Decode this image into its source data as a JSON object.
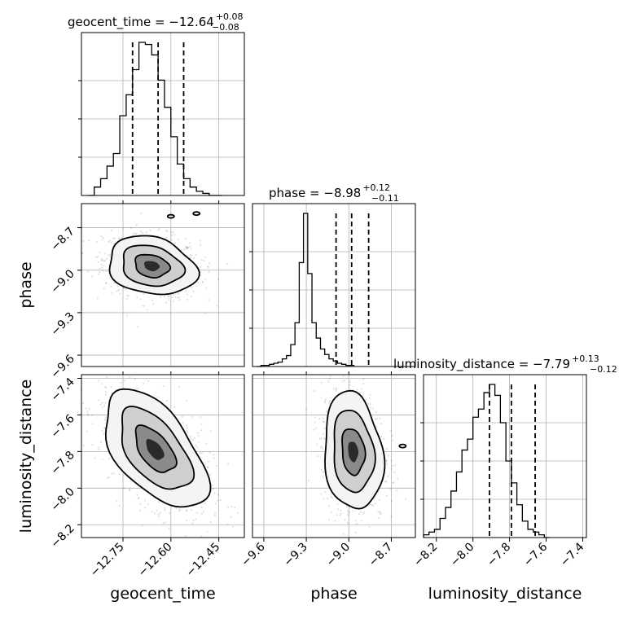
{
  "chart_data": {
    "type": "corner",
    "parameters": [
      {
        "name": "geocent_time",
        "xlabel": "geocent_time",
        "range": [
          -12.88,
          -12.37
        ],
        "ticks": [
          -12.75,
          -12.6,
          -12.45
        ],
        "tick_labels": [
          "−12.75",
          "−12.60",
          "−12.45"
        ],
        "title": {
          "prefix": "geocent_time = ",
          "median": "−12.64",
          "plus": "+0.08",
          "minus": "−0.08"
        },
        "median": -12.64,
        "q_low": -12.72,
        "q_high": -12.56,
        "hist_bin_edges_start": -12.86,
        "hist_bin_width": 0.02,
        "hist_counts": [
          0,
          4,
          8,
          14,
          20,
          38,
          48,
          60,
          73,
          72,
          67,
          55,
          42,
          28,
          15,
          8,
          4,
          2,
          1,
          0,
          0
        ]
      },
      {
        "name": "phase",
        "xlabel": "phase",
        "ylabel": "phase",
        "range": [
          -9.68,
          -8.53
        ],
        "ticks": [
          -9.6,
          -9.3,
          -9.0,
          -8.7
        ],
        "tick_labels": [
          "−9.6",
          "−9.3",
          "−9.0",
          "−8.7"
        ],
        "title": {
          "prefix": "phase = ",
          "median": "−8.98",
          "plus": "+0.12",
          "minus": "−0.11"
        },
        "median": -8.98,
        "q_low": -9.09,
        "q_high": -8.86,
        "hist_bin_edges_start": -9.65,
        "hist_bin_width": 0.03,
        "hist_counts": [
          0,
          1,
          1,
          2,
          3,
          4,
          7,
          10,
          20,
          40,
          95,
          140,
          85,
          40,
          26,
          16,
          11,
          7,
          5,
          3,
          2,
          1,
          1
        ]
      },
      {
        "name": "luminosity_distance",
        "xlabel": "luminosity_distance",
        "ylabel": "luminosity_distance",
        "range": [
          -8.27,
          -7.38
        ],
        "ticks": [
          -8.2,
          -8.0,
          -7.8,
          -7.6,
          -7.4
        ],
        "tick_labels": [
          "−8.2",
          "−8.0",
          "−7.8",
          "−7.6",
          "−7.4"
        ],
        "title": {
          "prefix": "luminosity_distance = ",
          "median": "−7.79",
          "plus": "+0.13",
          "minus": "−0.12"
        },
        "median": -7.79,
        "q_low": -7.91,
        "q_high": -7.66,
        "hist_bin_edges_start": -8.27,
        "hist_bin_width": 0.03,
        "hist_counts": [
          1,
          2,
          3,
          7,
          11,
          17,
          24,
          32,
          36,
          44,
          47,
          53,
          56,
          52,
          42,
          28,
          20,
          12,
          6,
          3,
          2,
          1,
          0
        ]
      }
    ],
    "pairs": [
      {
        "x": "geocent_time",
        "y": "phase",
        "center": [
          -12.66,
          -8.97
        ],
        "sd": [
          0.06,
          0.09
        ],
        "corr": -0.2,
        "contours_sigma": [
          0.9,
          1.6,
          2.3
        ],
        "islands": [
          [
            -12.6,
            -8.62
          ],
          [
            -12.52,
            -8.6
          ]
        ]
      },
      {
        "x": "geocent_time",
        "y": "luminosity_distance",
        "center": [
          -12.65,
          -7.79
        ],
        "sd": [
          0.07,
          0.14
        ],
        "corr": -0.55,
        "contours_sigma": [
          0.9,
          1.6,
          2.3
        ],
        "islands": []
      },
      {
        "x": "phase",
        "y": "luminosity_distance",
        "center": [
          -8.97,
          -7.8
        ],
        "sd": [
          0.09,
          0.14
        ],
        "corr": -0.15,
        "contours_sigma": [
          0.9,
          1.6,
          2.3
        ],
        "islands": [
          [
            -8.62,
            -7.77
          ]
        ]
      }
    ]
  }
}
